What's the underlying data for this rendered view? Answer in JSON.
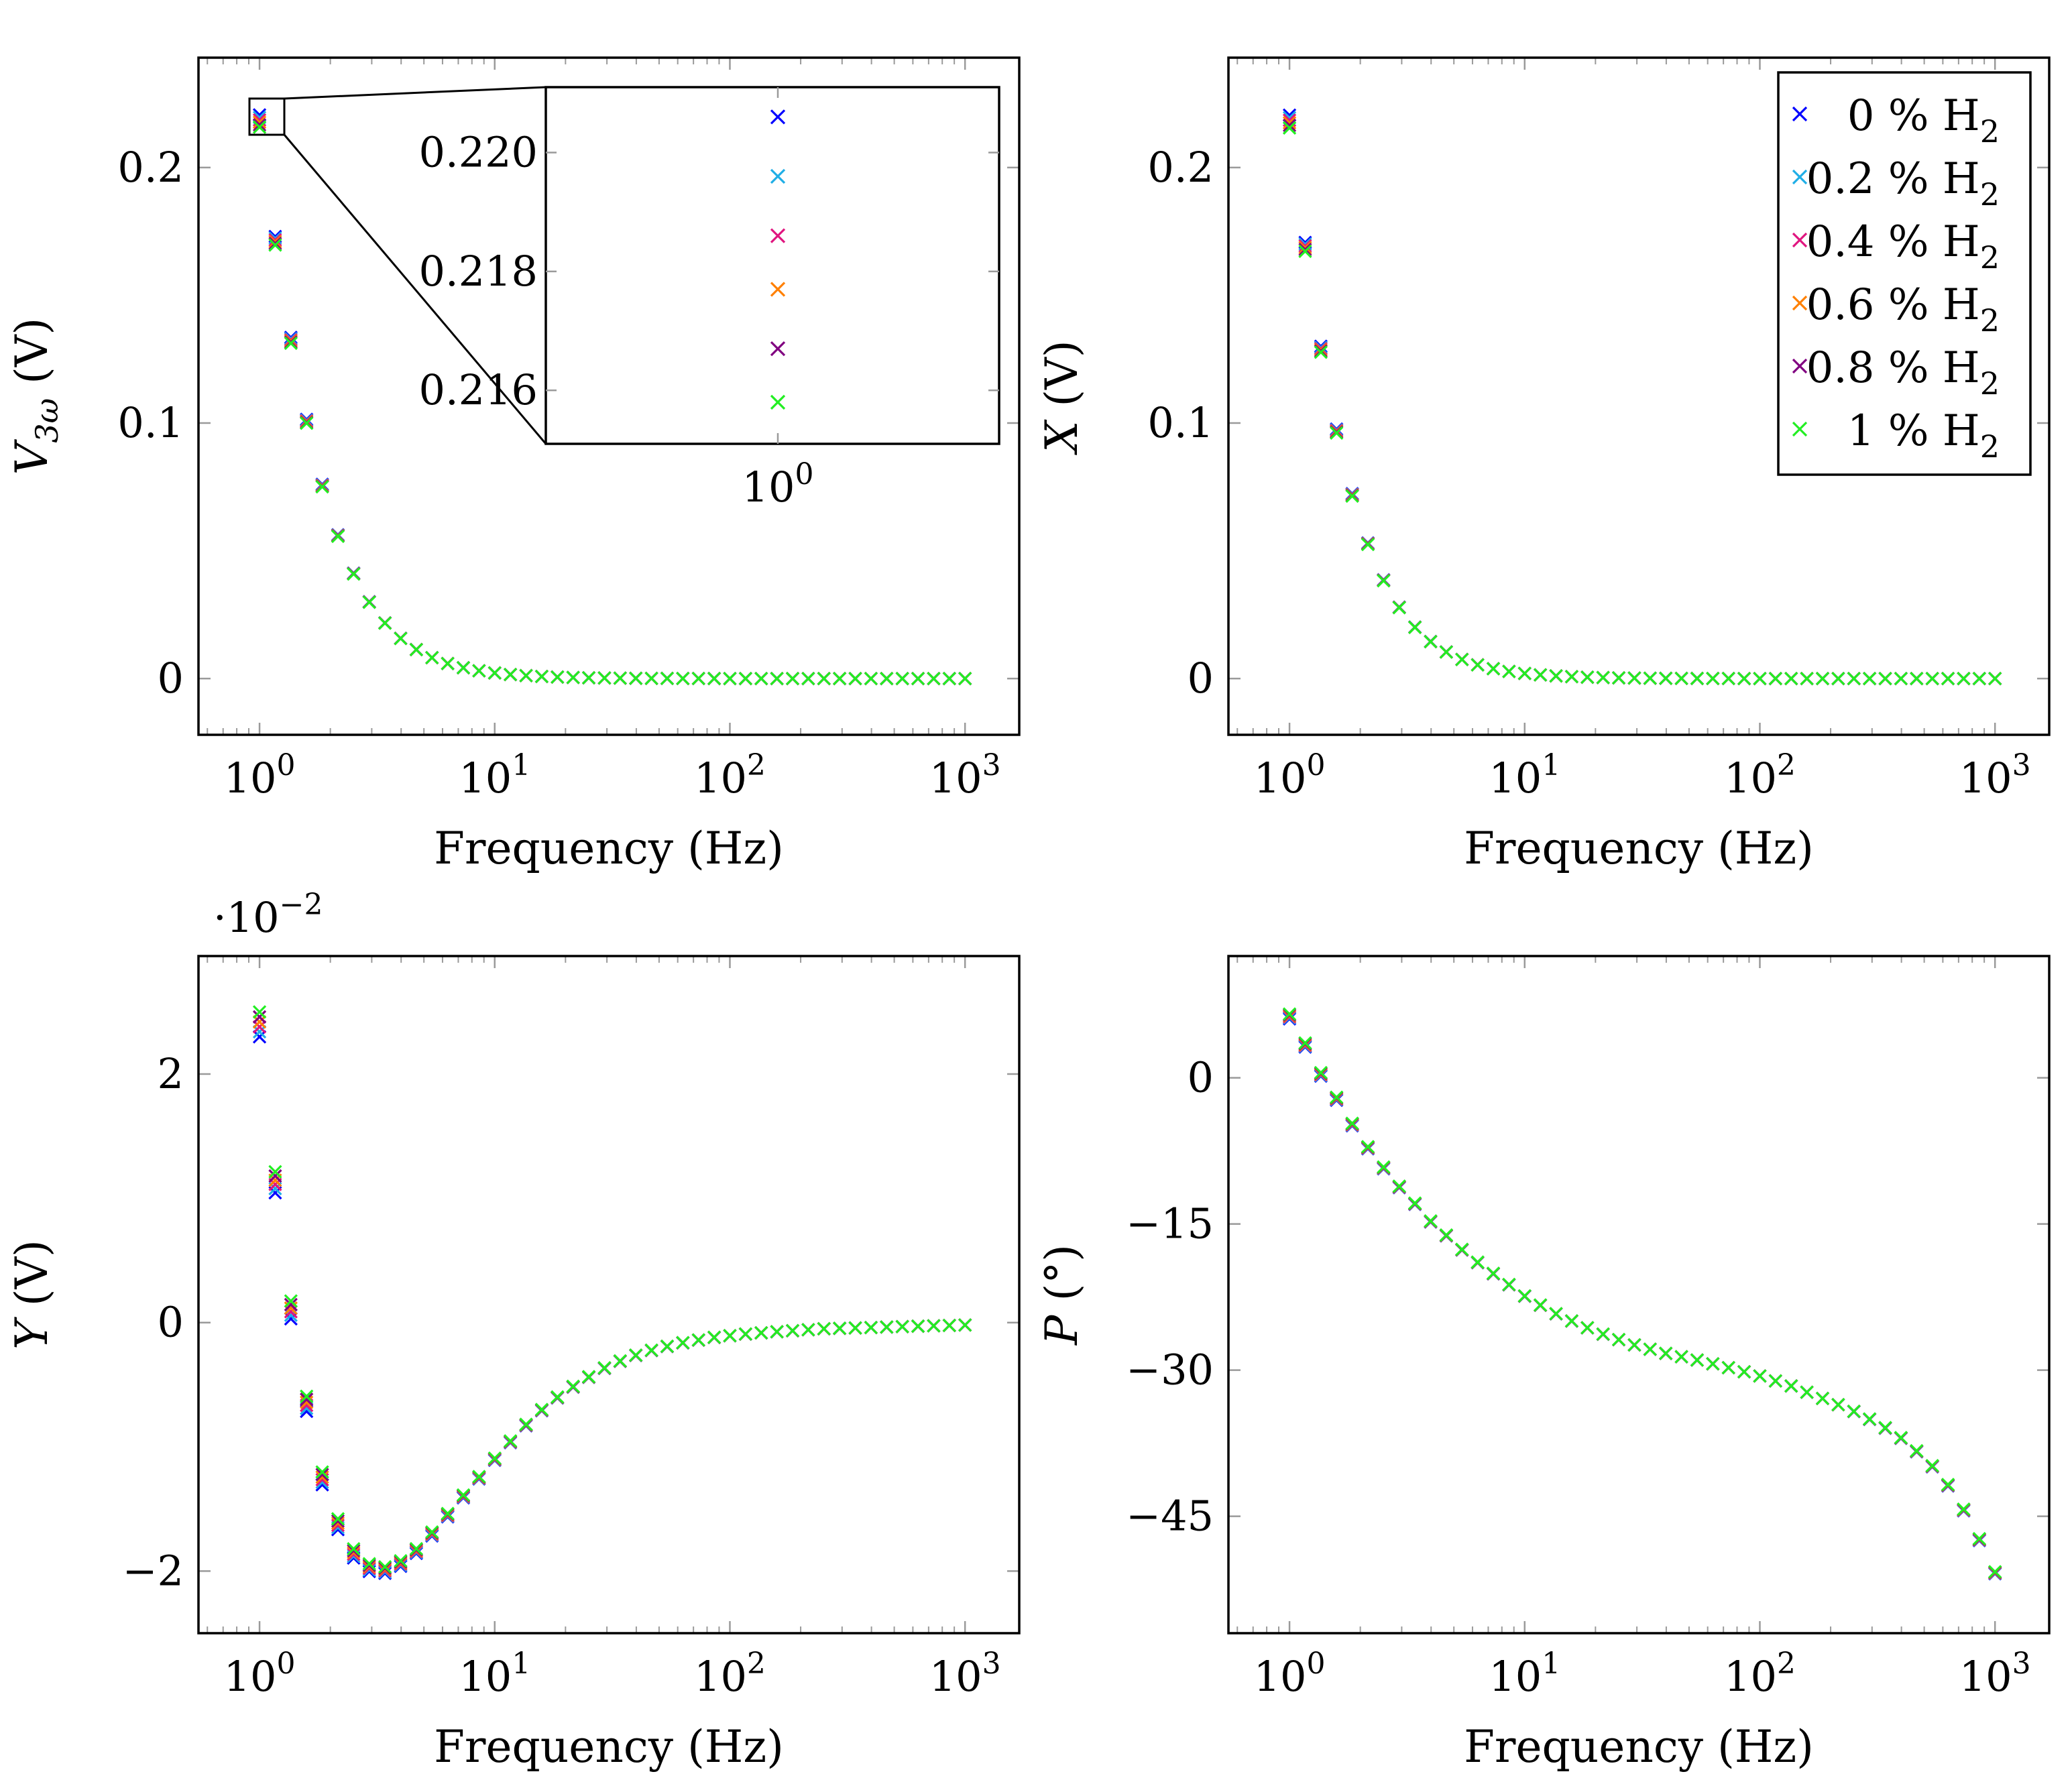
{
  "colors": {
    "0 % H2": "#0000ff",
    "0.2 % H2": "#1faee6",
    "0.4 % H2": "#e0157f",
    "0.6 % H2": "#ff8000",
    "0.8 % H2": "#800080",
    "1 % H2": "#22ee22"
  },
  "legend": {
    "entries": [
      {
        "name": "0 % H2",
        "label": "0 % H",
        "sub": "2"
      },
      {
        "name": "0.2 % H2",
        "label": "0.2 % H",
        "sub": "2"
      },
      {
        "name": "0.4 % H2",
        "label": "0.4 % H",
        "sub": "2"
      },
      {
        "name": "0.6 % H2",
        "label": "0.6 % H",
        "sub": "2"
      },
      {
        "name": "0.8 % H2",
        "label": "0.8 % H",
        "sub": "2"
      },
      {
        "name": "1 % H2",
        "label": "1 % H",
        "sub": "2"
      }
    ],
    "placement": "top-right of X panel"
  },
  "chart_data": [
    {
      "id": "v3w",
      "type": "scatter",
      "xlabel": "Frequency (Hz)",
      "ylabel_main": "V",
      "ylabel_sub": "3ω",
      "ylabel_unit": " (V)",
      "xscale": "log",
      "xlim": [
        0.55,
        1700
      ],
      "ylim": [
        -0.022,
        0.243
      ],
      "xticks": [
        {
          "v": 1,
          "exp": "0"
        },
        {
          "v": 10,
          "exp": "1"
        },
        {
          "v": 100,
          "exp": "2"
        },
        {
          "v": 1000,
          "exp": "3"
        }
      ],
      "yticks": [
        {
          "v": 0,
          "label": "0"
        },
        {
          "v": 0.1,
          "label": "0.1"
        },
        {
          "v": 0.2,
          "label": "0.2"
        }
      ],
      "model": "lowpass",
      "a": 0.221,
      "fc": 1.1,
      "n": 2.1,
      "first_values": {
        "0 % H2": 0.2206,
        "0.2 % H2": 0.2196,
        "0.4 % H2": 0.2186,
        "0.6 % H2": 0.2177,
        "0.8 % H2": 0.2167,
        "1 % H2": 0.2158
      },
      "inset": {
        "yticks": [
          {
            "v": 0.216,
            "label": "0.216"
          },
          {
            "v": 0.218,
            "label": "0.218"
          },
          {
            "v": 0.22,
            "label": "0.220"
          }
        ],
        "ylim": [
          0.2151,
          0.2211
        ],
        "xtick": {
          "v": 1,
          "exp": "0"
        }
      }
    },
    {
      "id": "x",
      "type": "scatter",
      "xlabel": "Frequency (Hz)",
      "ylabel_main": "X",
      "ylabel_sub": "",
      "ylabel_unit": " (V)",
      "xscale": "log",
      "xlim": [
        0.55,
        1700
      ],
      "ylim": [
        -0.022,
        0.243
      ],
      "xticks": [
        {
          "v": 1,
          "exp": "0"
        },
        {
          "v": 10,
          "exp": "1"
        },
        {
          "v": 100,
          "exp": "2"
        },
        {
          "v": 1000,
          "exp": "3"
        }
      ],
      "yticks": [
        {
          "v": 0,
          "label": "0"
        },
        {
          "v": 0.1,
          "label": "0.1"
        },
        {
          "v": 0.2,
          "label": "0.2"
        }
      ],
      "model": "lowpass",
      "a": 0.22,
      "fc": 1.05,
      "n": 2.1,
      "first_values": {
        "0 % H2": 0.2205,
        "0.2 % H2": 0.2195,
        "0.4 % H2": 0.2185,
        "0.6 % H2": 0.2175,
        "0.8 % H2": 0.2165,
        "1 % H2": 0.2155
      }
    },
    {
      "id": "y",
      "type": "scatter",
      "xlabel": "Frequency (Hz)",
      "ylabel_main": "Y",
      "ylabel_sub": "",
      "ylabel_unit": " (V)",
      "multiplier_text": "·10",
      "multiplier_exp": "−2",
      "xscale": "log",
      "xlim": [
        0.55,
        1700
      ],
      "ylim": [
        -2.5,
        2.95
      ],
      "xticks": [
        {
          "v": 1,
          "exp": "0"
        },
        {
          "v": 10,
          "exp": "1"
        },
        {
          "v": 100,
          "exp": "2"
        },
        {
          "v": 1000,
          "exp": "3"
        }
      ],
      "yticks": [
        {
          "v": -2,
          "label": "−2"
        },
        {
          "v": 0,
          "label": "0"
        },
        {
          "v": 2,
          "label": "2"
        }
      ],
      "model": "points",
      "points": [
        [
          1,
          2.4
        ],
        [
          1.17,
          1.1
        ],
        [
          1.37,
          0.05
        ],
        [
          1.6,
          -0.7
        ],
        [
          1.87,
          -1.3
        ],
        [
          2.18,
          -1.65
        ],
        [
          2.55,
          -1.88
        ],
        [
          2.9,
          -1.97
        ],
        [
          3.3,
          -2.0
        ],
        [
          3.75,
          -1.97
        ],
        [
          4.3,
          -1.9
        ],
        [
          5,
          -1.78
        ],
        [
          6,
          -1.6
        ],
        [
          7.5,
          -1.38
        ],
        [
          10,
          -1.1
        ],
        [
          13,
          -0.86
        ],
        [
          17,
          -0.65
        ],
        [
          23,
          -0.48
        ],
        [
          31,
          -0.34
        ],
        [
          43,
          -0.24
        ],
        [
          60,
          -0.17
        ],
        [
          85,
          -0.12
        ],
        [
          120,
          -0.09
        ],
        [
          170,
          -0.07
        ],
        [
          250,
          -0.05
        ],
        [
          400,
          -0.04
        ],
        [
          600,
          -0.03
        ],
        [
          1000,
          -0.02
        ]
      ],
      "spread": 0.2
    },
    {
      "id": "p",
      "type": "scatter",
      "xlabel": "Frequency (Hz)",
      "ylabel_main": "P",
      "ylabel_sub": "",
      "ylabel_unit": " (°)",
      "xscale": "log",
      "xlim": [
        0.55,
        1700
      ],
      "ylim": [
        -57,
        12.5
      ],
      "xticks": [
        {
          "v": 1,
          "exp": "0"
        },
        {
          "v": 10,
          "exp": "1"
        },
        {
          "v": 100,
          "exp": "2"
        },
        {
          "v": 1000,
          "exp": "3"
        }
      ],
      "yticks": [
        {
          "v": 0,
          "label": "0"
        },
        {
          "v": -15,
          "label": "−15"
        },
        {
          "v": -30,
          "label": "−30"
        },
        {
          "v": -45,
          "label": "−45"
        }
      ],
      "model": "points",
      "points": [
        [
          1,
          6.3
        ],
        [
          1.17,
          3.3
        ],
        [
          1.37,
          0.2
        ],
        [
          1.6,
          -2.3
        ],
        [
          1.87,
          -5
        ],
        [
          2.2,
          -7.5
        ],
        [
          2.6,
          -9.7
        ],
        [
          3,
          -11.5
        ],
        [
          3.5,
          -13.2
        ],
        [
          4,
          -14.8
        ],
        [
          4.7,
          -16.3
        ],
        [
          5.5,
          -17.8
        ],
        [
          6.5,
          -19.2
        ],
        [
          8,
          -20.7
        ],
        [
          10,
          -22.4
        ],
        [
          13,
          -24
        ],
        [
          17,
          -25.3
        ],
        [
          22,
          -26.4
        ],
        [
          30,
          -27.5
        ],
        [
          40,
          -28.3
        ],
        [
          55,
          -29
        ],
        [
          75,
          -29.8
        ],
        [
          100,
          -30.6
        ],
        [
          135,
          -31.6
        ],
        [
          180,
          -32.8
        ],
        [
          240,
          -34
        ],
        [
          320,
          -35.5
        ],
        [
          400,
          -37
        ],
        [
          500,
          -39
        ],
        [
          600,
          -41
        ],
        [
          700,
          -43.5
        ],
        [
          800,
          -45.8
        ],
        [
          900,
          -48.5
        ],
        [
          1000,
          -50.8
        ]
      ],
      "spread": 0.5
    }
  ]
}
